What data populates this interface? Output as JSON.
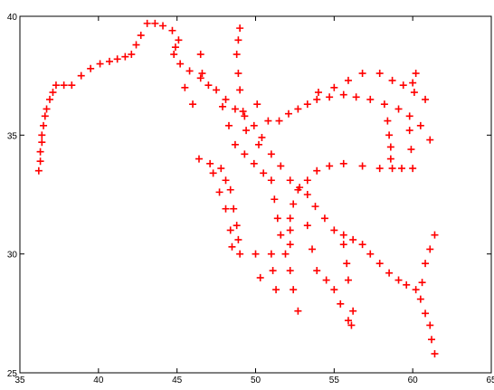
{
  "chart_data": {
    "type": "scatter",
    "marker": "+",
    "color": "#ff0000",
    "xlim": [
      35,
      65
    ],
    "xticks": [
      35,
      40,
      45,
      50,
      55,
      60,
      65
    ],
    "ylim": [
      25,
      40
    ],
    "yticks": [
      25,
      30,
      35,
      40
    ],
    "x": [
      36.2,
      36.3,
      36.3,
      36.4,
      36.4,
      36.5,
      36.6,
      36.7,
      36.9,
      37.1,
      37.3,
      37.8,
      38.3,
      38.9,
      39.5,
      40.1,
      40.7,
      41.2,
      41.7,
      42.1,
      42.4,
      42.7,
      43.1,
      43.6,
      44.1,
      44.7,
      45.1,
      44.9,
      44.8,
      45.2,
      45.8,
      46.5,
      47.0,
      47.5,
      48.1,
      48.7,
      49.3,
      49.9,
      50.4,
      51.0,
      51.6,
      52.2,
      52.8,
      53.3,
      53.8,
      54.4,
      55.0,
      55.6,
      56.2,
      56.8,
      57.3,
      57.9,
      58.5,
      59.1,
      59.6,
      60.2,
      51.5,
      52.1,
      52.7,
      53.3,
      53.9,
      54.7,
      55.6,
      56.4,
      57.3,
      58.2,
      59.1,
      59.8,
      60.5,
      61.1,
      54.0,
      55.0,
      55.9,
      56.8,
      57.9,
      58.7,
      59.4,
      60.1,
      60.8,
      60.2,
      60.0,
      58.4,
      58.5,
      58.6,
      58.6,
      58.7,
      59.3,
      59.8,
      59.9,
      60.0,
      57.9,
      56.8,
      55.6,
      54.7,
      53.9,
      53.3,
      52.7,
      52.4,
      52.2,
      52.2,
      52.2,
      51.0,
      51.2,
      51.4,
      51.6,
      51.9,
      52.2,
      52.4,
      52.7,
      53.3,
      53.6,
      53.9,
      54.5,
      55.0,
      55.4,
      55.9,
      56.2,
      56.1,
      55.6,
      55.8,
      55.9,
      46.4,
      47.1,
      47.8,
      48.1,
      48.4,
      48.6,
      48.8,
      48.9,
      49.0,
      47.3,
      47.7,
      48.1,
      48.4,
      48.5,
      47.9,
      48.3,
      48.7,
      49.3,
      49.9,
      50.5,
      48.8,
      48.9,
      49.0,
      49.2,
      49.4,
      50.2,
      50.8,
      50.1,
      61.4,
      61.1,
      60.8,
      60.6,
      60.5,
      60.8,
      61.1,
      61.2,
      61.4,
      49.0,
      48.9,
      46.5,
      46.6,
      45.5,
      46.0,
      51.0,
      51.1,
      51.3,
      50.0,
      50.3
    ],
    "y": [
      33.5,
      33.9,
      34.3,
      34.7,
      35.0,
      35.4,
      35.8,
      36.1,
      36.5,
      36.8,
      37.1,
      37.1,
      37.1,
      37.5,
      37.8,
      38.0,
      38.1,
      38.2,
      38.3,
      38.4,
      38.8,
      39.2,
      39.7,
      39.7,
      39.6,
      39.4,
      39.0,
      38.7,
      38.4,
      38.0,
      37.7,
      37.4,
      37.1,
      36.9,
      36.5,
      36.1,
      35.8,
      35.4,
      34.9,
      34.2,
      33.7,
      33.1,
      32.8,
      32.5,
      32.0,
      31.5,
      31.0,
      30.8,
      30.6,
      30.4,
      30.0,
      29.6,
      29.2,
      28.9,
      28.7,
      28.5,
      35.6,
      35.9,
      36.1,
      36.3,
      36.5,
      36.6,
      36.7,
      36.6,
      36.5,
      36.3,
      36.1,
      35.8,
      35.4,
      34.8,
      36.8,
      37.0,
      37.3,
      37.6,
      37.6,
      37.3,
      37.1,
      36.8,
      36.5,
      37.6,
      37.2,
      35.6,
      35.0,
      34.5,
      34.0,
      33.6,
      33.6,
      35.2,
      34.4,
      33.6,
      33.6,
      33.7,
      33.8,
      33.7,
      33.5,
      33.1,
      32.7,
      32.1,
      31.5,
      31.0,
      30.4,
      33.1,
      32.3,
      31.5,
      30.8,
      30.0,
      29.3,
      28.5,
      27.6,
      31.2,
      30.2,
      29.3,
      28.9,
      28.5,
      27.9,
      27.2,
      27.6,
      27.0,
      30.4,
      29.6,
      28.9,
      34.0,
      33.8,
      33.6,
      33.1,
      32.7,
      31.9,
      31.2,
      30.6,
      30.0,
      33.4,
      32.6,
      31.9,
      31.0,
      30.3,
      36.2,
      35.4,
      34.6,
      34.2,
      33.8,
      33.4,
      38.4,
      37.6,
      36.9,
      36.0,
      35.2,
      34.6,
      35.6,
      36.3,
      30.8,
      30.2,
      29.6,
      28.8,
      28.1,
      27.5,
      27.0,
      26.4,
      25.8,
      39.5,
      39.0,
      38.4,
      37.6,
      37.0,
      36.3,
      30.0,
      29.3,
      28.5,
      30.0,
      29.0
    ]
  }
}
